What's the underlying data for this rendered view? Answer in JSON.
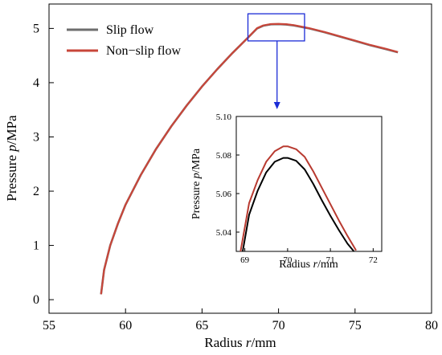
{
  "chart_data": [
    {
      "type": "line",
      "xlabel_prefix": "Radius ",
      "xlabel_var": "r",
      "xlabel_suffix": "/mm",
      "ylabel_prefix": "Pressure ",
      "ylabel_var": "p",
      "ylabel_suffix": "/MPa",
      "xlim": [
        55,
        80
      ],
      "ylim": [
        -0.25,
        5.45
      ],
      "xticks": [
        55,
        60,
        65,
        70,
        75,
        80
      ],
      "yticks": [
        0,
        1,
        2,
        3,
        4,
        5
      ],
      "legend_position": "top-left",
      "series": [
        {
          "name": "Slip flow",
          "color": "#6e6e6e",
          "x": [
            58.4,
            58.6,
            59.0,
            59.5,
            60.0,
            61.0,
            62.0,
            63.0,
            64.0,
            65.0,
            66.0,
            67.0,
            68.0,
            68.6,
            69.0,
            69.5,
            70.0,
            70.5,
            71.0,
            72.0,
            73.0,
            74.0,
            75.0,
            76.0,
            77.0,
            77.8
          ],
          "y": [
            0.1,
            0.55,
            1.0,
            1.4,
            1.75,
            2.3,
            2.78,
            3.2,
            3.58,
            3.93,
            4.25,
            4.55,
            4.83,
            5.0,
            5.05,
            5.075,
            5.078,
            5.072,
            5.055,
            5.0,
            4.93,
            4.85,
            4.77,
            4.69,
            4.62,
            4.56
          ]
        },
        {
          "name": "Non−slip flow",
          "color": "#c8463a",
          "x": [
            58.4,
            58.6,
            59.0,
            59.5,
            60.0,
            61.0,
            62.0,
            63.0,
            64.0,
            65.0,
            66.0,
            67.0,
            68.0,
            68.6,
            69.0,
            69.5,
            70.0,
            70.5,
            71.0,
            72.0,
            73.0,
            74.0,
            75.0,
            76.0,
            77.0,
            77.8
          ],
          "y": [
            0.1,
            0.55,
            1.0,
            1.4,
            1.75,
            2.3,
            2.78,
            3.2,
            3.58,
            3.93,
            4.25,
            4.55,
            4.83,
            5.005,
            5.055,
            5.081,
            5.084,
            5.078,
            5.06,
            5.005,
            4.935,
            4.855,
            4.775,
            4.695,
            4.625,
            4.565
          ]
        }
      ]
    },
    {
      "type": "line",
      "role": "inset-zoom",
      "xlabel_prefix": "Radius ",
      "xlabel_var": "r",
      "xlabel_suffix": "/mm",
      "ylabel_prefix": "Pressure ",
      "ylabel_var": "p",
      "ylabel_suffix": "/MPa",
      "xlim": [
        68.8,
        72.2
      ],
      "ylim": [
        5.03,
        5.1
      ],
      "xticks": [
        69,
        70,
        71,
        72
      ],
      "yticks": [
        5.04,
        5.06,
        5.08,
        5.1
      ],
      "ytick_labels": [
        "5.04",
        "5.06",
        "5.08",
        "5.10"
      ],
      "zoom_box": {
        "xlim": [
          68.0,
          71.7
        ],
        "ylim": [
          4.77,
          5.27
        ]
      },
      "series": [
        {
          "name": "Slip flow",
          "color": "#000000",
          "x": [
            68.95,
            69.1,
            69.3,
            69.5,
            69.7,
            69.9,
            70.0,
            70.2,
            70.4,
            70.6,
            70.8,
            71.0,
            71.2,
            71.4,
            71.55
          ],
          "y": [
            5.03,
            5.049,
            5.0615,
            5.071,
            5.0765,
            5.0785,
            5.0785,
            5.077,
            5.0725,
            5.065,
            5.0565,
            5.0485,
            5.041,
            5.034,
            5.0285
          ]
        },
        {
          "name": "Non−slip flow",
          "color": "#b83a30",
          "x": [
            68.9,
            69.1,
            69.3,
            69.5,
            69.7,
            69.9,
            70.0,
            70.2,
            70.4,
            70.6,
            70.8,
            71.0,
            71.2,
            71.4,
            71.6
          ],
          "y": [
            5.03,
            5.055,
            5.067,
            5.0765,
            5.082,
            5.0845,
            5.0845,
            5.083,
            5.079,
            5.0715,
            5.063,
            5.0545,
            5.046,
            5.038,
            5.0305
          ]
        }
      ]
    }
  ]
}
